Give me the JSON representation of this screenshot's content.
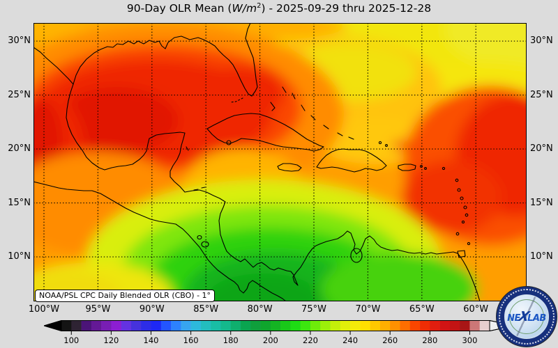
{
  "title": {
    "prefix": "90-Day OLR Mean (",
    "units": "W/m",
    "exponent": "2",
    "suffix": ") - 2025-09-29 thru 2025-12-28"
  },
  "attribution": "NOAA/PSL CPC Daily Blended OLR (CBO) - 1°",
  "logo": {
    "left": "NE",
    "x": "X",
    "right": "LAB"
  },
  "chart_data": {
    "type": "heatmap",
    "title": "90-Day OLR Mean (W/m²) - 2025-09-29 thru 2025-12-28",
    "variable": "90-day mean Outgoing Longwave Radiation",
    "units": "W/m²",
    "annotation": "NOAA/PSL CPC Daily Blended OLR (CBO) - 1°",
    "grid": "dotted",
    "lon_range": [
      -101,
      -55.3
    ],
    "lat_range": [
      5.9,
      31.7
    ],
    "lon_tick_values": [
      -100,
      -95,
      -90,
      -85,
      -80,
      -75,
      -70,
      -65,
      -60
    ],
    "lon_tick_labels": [
      "100°W",
      "95°W",
      "90°W",
      "85°W",
      "80°W",
      "75°W",
      "70°W",
      "65°W",
      "60°W"
    ],
    "lat_tick_values": [
      30,
      25,
      20,
      15,
      10
    ],
    "lat_tick_labels": [
      "30°N",
      "25°N",
      "20°N",
      "15°N",
      "10°N"
    ],
    "colorbar": {
      "orientation": "horizontal",
      "value_range": [
        95,
        310
      ],
      "segment_step": 5,
      "tick_values": [
        100,
        120,
        140,
        160,
        180,
        200,
        220,
        240,
        260,
        280,
        300
      ],
      "colors": [
        "#141414",
        "#2e2333",
        "#4b1478",
        "#641996",
        "#781eb4",
        "#8c1ed2",
        "#6432e1",
        "#4632dc",
        "#2d2de6",
        "#1e28f5",
        "#2355ff",
        "#2d82ff",
        "#37a5f0",
        "#2db9dc",
        "#23bdbe",
        "#19bda5",
        "#14b98c",
        "#0faf6e",
        "#0aa550",
        "#0f9f3c",
        "#0fa52d",
        "#14b423",
        "#19c819",
        "#1edc14",
        "#3ce60f",
        "#6eeb0a",
        "#9bf00a",
        "#c3f00a",
        "#e1f00a",
        "#f5eb0a",
        "#ffdf00",
        "#ffc800",
        "#ffaf00",
        "#ff9100",
        "#ff6e00",
        "#fa4600",
        "#f02d05",
        "#e11e0f",
        "#d21414",
        "#c31414",
        "#a81616",
        "#cc7777",
        "#e6cfcf"
      ]
    },
    "features": [
      {
        "region": "Gulf of Mexico / northeastern Mexico",
        "approx_value_wm2": 285,
        "appearance": "deep red OLR maximum"
      },
      {
        "region": "Eastern Caribbean / tropical Atlantic near 15-20N 55-62W",
        "approx_value_wm2": 275,
        "appearance": "red maximum"
      },
      {
        "region": "Bahamas / western Atlantic",
        "approx_value_wm2": 245,
        "appearance": "yellow"
      },
      {
        "region": "Cuba, Jamaica, Hispaniola",
        "approx_value_wm2": 255,
        "appearance": "orange"
      },
      {
        "region": "SW Caribbean: Panama, Costa Rica, Colombia",
        "approx_value_wm2": 200,
        "appearance": "green OLR minimum"
      },
      {
        "region": "Eastern Pacific south of Mexico / Guatemala",
        "approx_value_wm2": 240,
        "appearance": "yellow"
      }
    ]
  }
}
